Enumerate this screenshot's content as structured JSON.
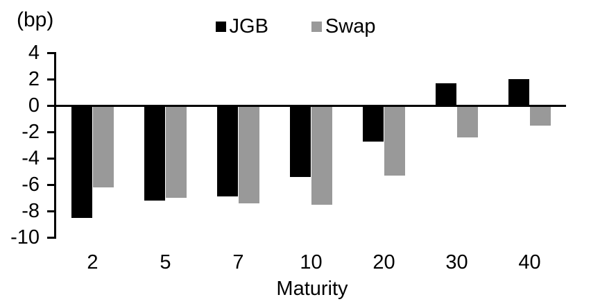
{
  "chart_data": {
    "type": "bar",
    "title": "",
    "unit_label": "(bp)",
    "xlabel": "Maturity",
    "ylabel": "(bp)",
    "categories": [
      "2",
      "5",
      "7",
      "10",
      "20",
      "30",
      "40"
    ],
    "series": [
      {
        "name": "JGB",
        "color": "#000000",
        "values": [
          -8.5,
          -7.2,
          -6.9,
          -5.4,
          -2.7,
          1.7,
          2.0
        ]
      },
      {
        "name": "Swap",
        "color": "#999999",
        "values": [
          -6.2,
          -7.0,
          -7.4,
          -7.5,
          -5.3,
          -2.4,
          -1.5
        ]
      }
    ],
    "ylim": [
      -10,
      4
    ],
    "yticks": [
      4,
      2,
      0,
      -2,
      -4,
      -6,
      -8,
      -10
    ],
    "ytick_step": 2,
    "grid": false,
    "legend_position": "top-center",
    "axis_color": "#000000",
    "background_color": "#ffffff"
  }
}
